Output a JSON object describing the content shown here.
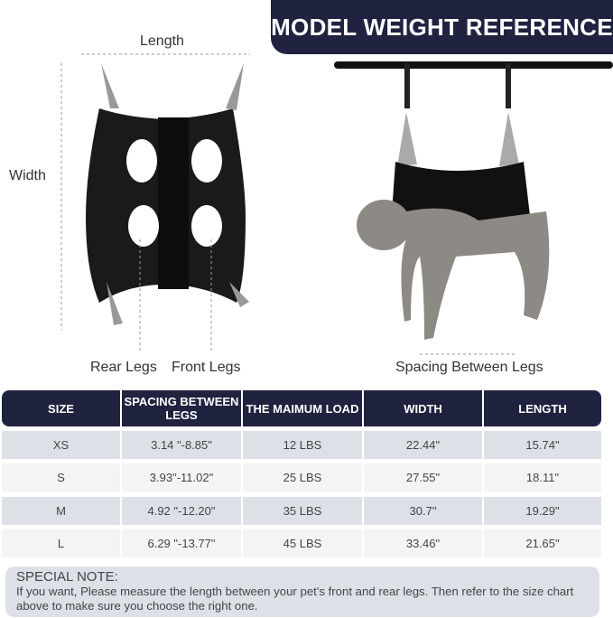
{
  "banner": {
    "title": "MODEL WEIGHT REFERENCE"
  },
  "diagram": {
    "length_label": "Length",
    "width_label": "Width",
    "rear_legs_label": "Rear Legs",
    "front_legs_label": "Front Legs",
    "spacing_label": "Spacing  Between  Legs"
  },
  "table": {
    "headers": [
      "SIZE",
      "SPACING BETWEEN LEGS",
      "THE MAIMUM LOAD",
      "WIDTH",
      "LENGTH"
    ],
    "rows": [
      [
        "XS",
        "3.14 \"-8.85\"",
        "12 LBS",
        "22.44\"",
        "15.74\""
      ],
      [
        "S",
        "3.93\"-11.02\"",
        "25 LBS",
        "27.55\"",
        "18.11\""
      ],
      [
        "M",
        "4.92 \"-12.20\"",
        "35 LBS",
        "30.7\"",
        "19.29\""
      ],
      [
        "L",
        "6.29 \"-13.77\"",
        "45 LBS",
        "33.46\"",
        "21.65\""
      ]
    ]
  },
  "note": {
    "title": "SPECIAL NOTE:",
    "text": "If you want, Please measure the length between your pet's front and rear legs. Then refer to the size chart above to make sure you choose the right one."
  },
  "colors": {
    "navy": "#1f2340",
    "row_dark": "#dde0e7",
    "row_light": "#f3f4f6"
  }
}
